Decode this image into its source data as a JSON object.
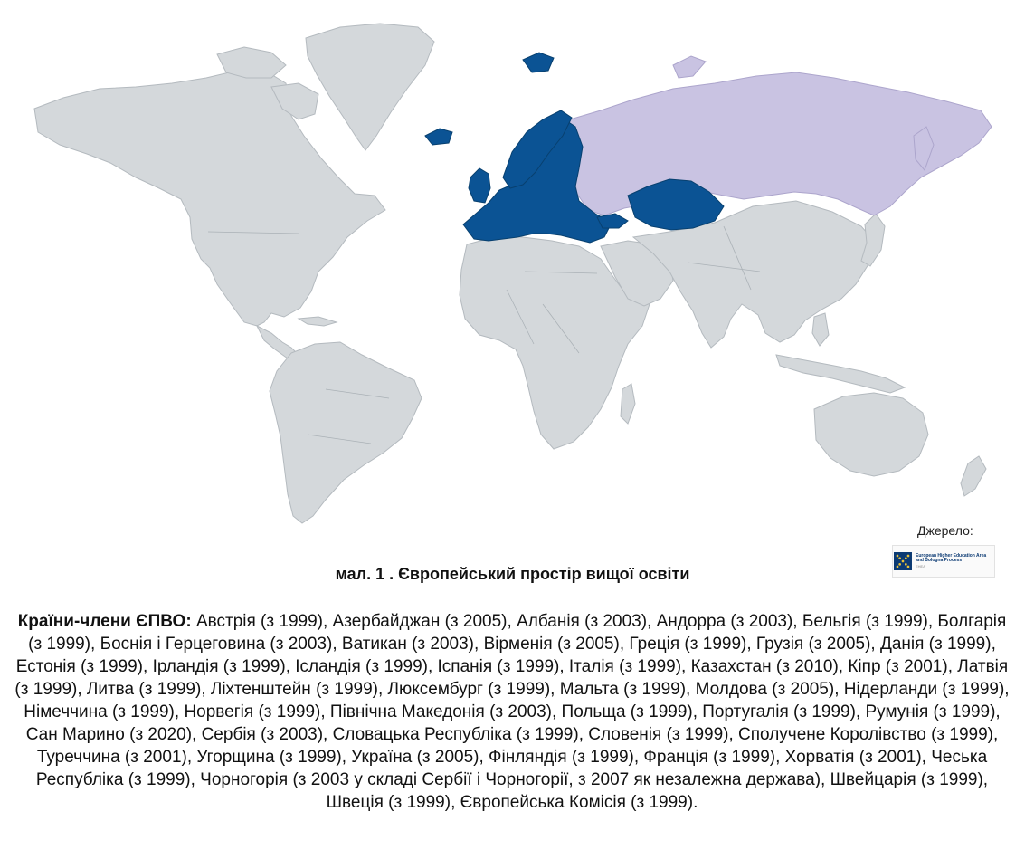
{
  "figure": {
    "caption": "мал. 1 . Європейський простір вищої освіти",
    "source_label": "Джерело:",
    "source_logo": {
      "line1": "European Higher Education Area and Bologna Process",
      "line2": "EHEA"
    }
  },
  "legend_colors": {
    "member": "#0b5394",
    "russia": "#c9c3e2",
    "other": "#d4d8db"
  },
  "members": {
    "heading": "Країни-члени ЄПВО:",
    "list": " Австрія (з 1999), Азербайджан (з 2005), Албанія (з 2003), Андорра (з 2003), Бельгія (з 1999), Болгарія (з 1999), Боснія і Герцеговина (з 2003), Ватикан (з 2003), Вірменія (з 2005), Греція (з 1999), Грузія (з 2005), Данія (з 1999), Естонія (з 1999), Ірландія (з 1999), Ісландія (з 1999), Іспанія (з 1999), Італія (з 1999), Казахстан (з 2010), Кіпр (з 2001), Латвія (з 1999), Литва (з 1999), Ліхтенштейн (з 1999), Люксембург (з 1999), Мальта (з 1999), Молдова (з 2005), Нідерланди (з 1999), Німеччина (з 1999), Норвегія (з 1999), Північна Македонія (з 2003), Польща (з 1999), Португалія (з 1999), Румунія (з 1999), Сан Марино (з 2020), Сербія (з 2003), Словацька Республіка (з 1999), Словенія (з 1999), Сполучене Королівство (з 1999), Туреччина (з 2001), Угорщина (з 1999), Україна (з 2005), Фінляндія (з 1999), Франція (з 1999), Хорватія (з 2001), Чеська Республіка (з 1999), Чорногорія (з 2003 у складі Сербії і Чорногорії, з 2007 як незалежна держава), Швейцарія (з 1999), Швеція (з 1999), Європейська Комісія (з 1999)."
  }
}
